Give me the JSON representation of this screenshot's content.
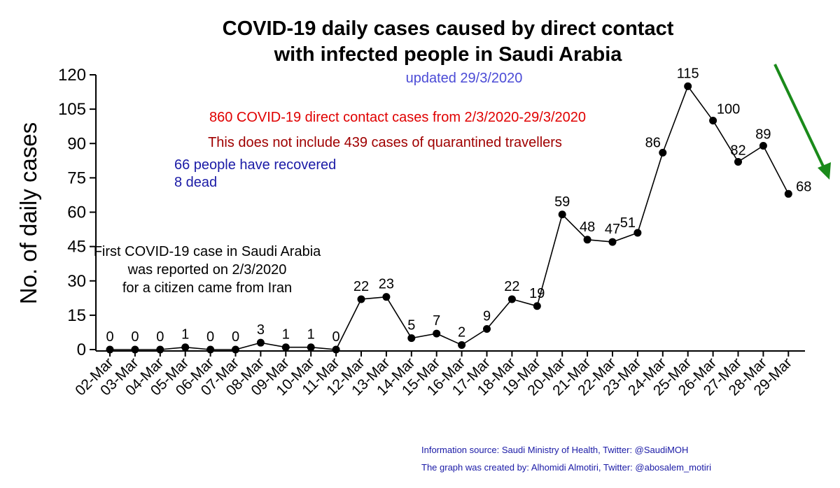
{
  "chart_data": {
    "type": "line",
    "title_line1": "COVID-19 daily cases caused by direct contact",
    "title_line2": "with infected people in Saudi Arabia",
    "subtitle": "updated 29/3/2020",
    "ylabel": "No. of daily cases",
    "xlabel": "",
    "ylim": [
      0,
      120
    ],
    "yticks": [
      0,
      15,
      30,
      45,
      60,
      75,
      90,
      105,
      120
    ],
    "categories": [
      "02-Mar",
      "03-Mar",
      "04-Mar",
      "05-Mar",
      "06-Mar",
      "07-Mar",
      "08-Mar",
      "09-Mar",
      "10-Mar",
      "11-Mar",
      "12-Mar",
      "13-Mar",
      "14-Mar",
      "15-Mar",
      "16-Mar",
      "17-Mar",
      "18-Mar",
      "19-Mar",
      "20-Mar",
      "21-Mar",
      "22-Mar",
      "23-Mar",
      "24-Mar",
      "25-Mar",
      "26-Mar",
      "27-Mar",
      "28-Mar",
      "29-Mar"
    ],
    "values": [
      0,
      0,
      0,
      1,
      0,
      0,
      3,
      1,
      1,
      0,
      22,
      23,
      5,
      7,
      2,
      9,
      22,
      19,
      59,
      48,
      47,
      51,
      86,
      115,
      100,
      82,
      89,
      68
    ],
    "grid": false,
    "annotations": {
      "total": "860 COVID-19 direct contact cases from 2/3/2020-29/3/2020",
      "travellers": "This does not include 439 cases of quarantined travellers",
      "recovered": "66 people have recovered",
      "dead": "8  dead",
      "first_case_line1": "First COVID-19 case in Saudi Arabia",
      "first_case_line2": "was reported on 2/3/2020",
      "first_case_line3": "for a citizen came from Iran"
    },
    "credits": {
      "source": "Information source:  Saudi Ministry of Health, Twitter: @SaudiMOH",
      "author": "The graph was created by: Alhomidi Almotiri, Twitter: @abosalem_motiri"
    },
    "colors": {
      "line": "#000000",
      "subtitle": "#4b4bd6",
      "total": "#e00000",
      "travellers": "#a00000",
      "recovered": "#1a1aa6",
      "trend_arrow": "#1a8a1a"
    }
  }
}
